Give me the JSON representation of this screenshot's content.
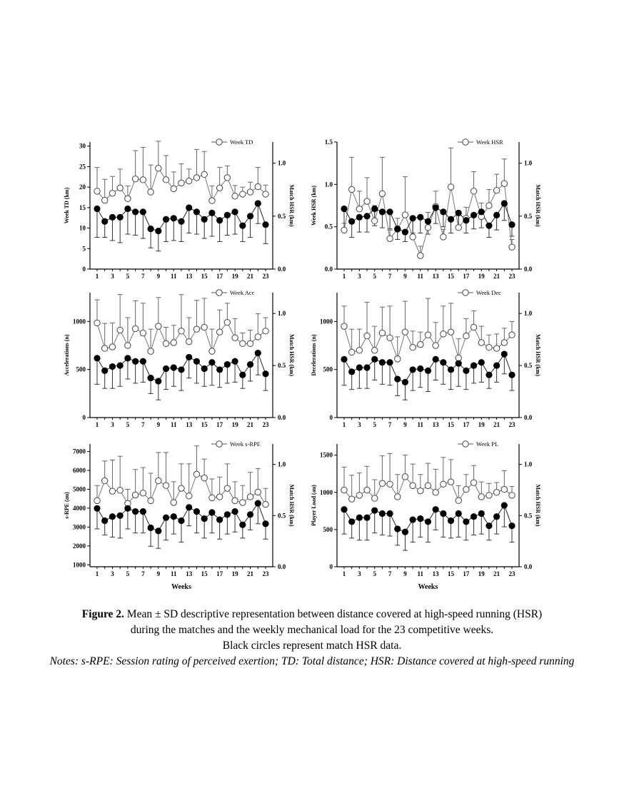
{
  "caption": {
    "label": "Figure 2.",
    "line1": "Mean ± SD descriptive representation between distance covered at high-speed running (HSR)",
    "line2": "during the matches and the weekly mechanical load for the 23 competitive weeks.",
    "line3": "Black circles represent match HSR data.",
    "notes": "Notes: s-RPE: Session rating of perceived exertion; TD: Total distance; HSR: Distance covered at high-speed running"
  },
  "chart_data": [
    {
      "type": "line",
      "ylabel": "Week TD (km)",
      "y2label": "Match HSR (km)",
      "xlabel": "",
      "ylim": [
        0,
        31
      ],
      "yticks": [
        0,
        5,
        10,
        15,
        20,
        25,
        30
      ],
      "y2lim": [
        0,
        1.2
      ],
      "y2ticks": [
        "0.0",
        "0.5",
        "1.0"
      ],
      "xticks": [
        1,
        3,
        5,
        7,
        9,
        11,
        13,
        15,
        17,
        19,
        21,
        23
      ],
      "legend": "Week TD",
      "week": [
        19.0,
        16.8,
        18.5,
        19.8,
        17.2,
        22.0,
        21.8,
        18.8,
        24.6,
        21.8,
        19.6,
        21.0,
        21.5,
        22.3,
        23.1,
        16.7,
        19.8,
        22.3,
        17.8,
        18.3,
        18.8,
        20.1,
        18.3
      ],
      "week_err": [
        5.8,
        5.1,
        4.1,
        4.6,
        3.1,
        6.9,
        7.9,
        6.6,
        6.6,
        5.9,
        4.1,
        4.7,
        2.9,
        6.9,
        5.6,
        3.6,
        5.0,
        2.9,
        2.6,
        1.7,
        2.4,
        4.7,
        2.2
      ],
      "match": [
        0.57,
        0.45,
        0.49,
        0.49,
        0.57,
        0.54,
        0.54,
        0.38,
        0.36,
        0.47,
        0.48,
        0.45,
        0.58,
        0.54,
        0.47,
        0.53,
        0.46,
        0.51,
        0.54,
        0.41,
        0.5,
        0.62,
        0.42
      ],
      "match_err": [
        0.27,
        0.15,
        0.22,
        0.24,
        0.24,
        0.22,
        0.25,
        0.18,
        0.19,
        0.21,
        0.21,
        0.19,
        0.24,
        0.21,
        0.18,
        0.22,
        0.2,
        0.19,
        0.21,
        0.15,
        0.2,
        0.19,
        0.18
      ]
    },
    {
      "type": "line",
      "ylabel": "Week HSR (km)",
      "y2label": "Match HSR (km)",
      "xlabel": "",
      "ylim": [
        0,
        1.5
      ],
      "yticks": [
        "0.0",
        "0.5",
        "1.0",
        "1.5"
      ],
      "y2lim": [
        0,
        1.2
      ],
      "y2ticks": [
        "0.0",
        "0.5",
        "1.0"
      ],
      "xticks": [
        1,
        3,
        5,
        7,
        9,
        11,
        13,
        15,
        17,
        19,
        21,
        23
      ],
      "legend": "Week HSR",
      "week": [
        0.46,
        0.94,
        0.71,
        0.8,
        0.57,
        0.89,
        0.36,
        0.47,
        0.64,
        0.38,
        0.16,
        0.49,
        0.74,
        0.38,
        0.97,
        0.49,
        0.6,
        0.92,
        0.62,
        0.75,
        0.93,
        1.01,
        0.26
      ],
      "week_err": [
        0.08,
        0.38,
        0.21,
        0.28,
        0.18,
        0.43,
        0.1,
        0.13,
        0.45,
        0.23,
        0.11,
        0.18,
        0.18,
        0.09,
        0.46,
        0.16,
        0.13,
        0.23,
        0.16,
        0.19,
        0.19,
        0.29,
        0.09
      ],
      "match": [
        0.57,
        0.45,
        0.49,
        0.5,
        0.57,
        0.54,
        0.54,
        0.38,
        0.35,
        0.48,
        0.49,
        0.45,
        0.58,
        0.54,
        0.47,
        0.53,
        0.46,
        0.51,
        0.54,
        0.41,
        0.51,
        0.62,
        0.42
      ],
      "match_err": [
        0.2,
        0.15,
        0.14,
        0.15,
        0.16,
        0.15,
        0.16,
        0.1,
        0.09,
        0.14,
        0.15,
        0.12,
        0.15,
        0.14,
        0.13,
        0.15,
        0.12,
        0.13,
        0.15,
        0.11,
        0.14,
        0.16,
        0.11
      ]
    },
    {
      "type": "line",
      "ylabel": "Accelerations (n)",
      "y2label": "Match HSR (km)",
      "xlabel": "",
      "ylim": [
        0,
        1300
      ],
      "yticks": [
        0,
        500,
        1000
      ],
      "y2lim": [
        0,
        1.2
      ],
      "y2ticks": [
        "0.0",
        "0.5",
        "1.0"
      ],
      "xticks": [
        1,
        3,
        5,
        7,
        9,
        11,
        13,
        15,
        17,
        19,
        21,
        23
      ],
      "legend": "Week Acc",
      "week": [
        985,
        720,
        735,
        910,
        750,
        925,
        880,
        690,
        950,
        770,
        780,
        900,
        790,
        920,
        940,
        690,
        890,
        990,
        830,
        770,
        770,
        840,
        900
      ],
      "week_err": [
        240,
        260,
        250,
        370,
        290,
        290,
        310,
        230,
        300,
        170,
        180,
        380,
        250,
        300,
        300,
        230,
        230,
        200,
        200,
        110,
        140,
        240,
        140
      ],
      "match": [
        0.57,
        0.45,
        0.49,
        0.5,
        0.57,
        0.54,
        0.54,
        0.38,
        0.35,
        0.47,
        0.48,
        0.46,
        0.58,
        0.54,
        0.47,
        0.53,
        0.46,
        0.51,
        0.54,
        0.41,
        0.51,
        0.62,
        0.42
      ],
      "match_err": [
        0.25,
        0.17,
        0.21,
        0.2,
        0.2,
        0.21,
        0.2,
        0.15,
        0.18,
        0.2,
        0.18,
        0.2,
        0.2,
        0.21,
        0.17,
        0.22,
        0.17,
        0.18,
        0.2,
        0.13,
        0.16,
        0.21,
        0.16
      ]
    },
    {
      "type": "line",
      "ylabel": "Decelerations (n)",
      "y2label": "Match HSR (km)",
      "xlabel": "",
      "ylim": [
        0,
        1300
      ],
      "yticks": [
        0,
        500,
        1000
      ],
      "y2lim": [
        0,
        1.2
      ],
      "y2ticks": [
        "0.0",
        "0.5",
        "1.0"
      ],
      "xticks": [
        1,
        3,
        5,
        7,
        9,
        11,
        13,
        15,
        17,
        19,
        21,
        23
      ],
      "legend": "Week Dec",
      "week": [
        950,
        680,
        700,
        850,
        700,
        880,
        830,
        610,
        890,
        730,
        760,
        860,
        750,
        870,
        890,
        620,
        850,
        940,
        780,
        730,
        720,
        780,
        860
      ],
      "week_err": [
        210,
        240,
        220,
        350,
        250,
        270,
        330,
        230,
        320,
        170,
        130,
        380,
        240,
        290,
        300,
        200,
        180,
        170,
        170,
        130,
        150,
        150,
        140
      ],
      "match": [
        0.56,
        0.44,
        0.48,
        0.48,
        0.56,
        0.53,
        0.53,
        0.37,
        0.34,
        0.46,
        0.47,
        0.45,
        0.56,
        0.53,
        0.46,
        0.52,
        0.45,
        0.5,
        0.53,
        0.41,
        0.5,
        0.61,
        0.41
      ],
      "match_err": [
        0.25,
        0.17,
        0.2,
        0.2,
        0.2,
        0.21,
        0.22,
        0.16,
        0.17,
        0.2,
        0.18,
        0.2,
        0.2,
        0.21,
        0.19,
        0.22,
        0.18,
        0.17,
        0.19,
        0.13,
        0.16,
        0.19,
        0.15
      ]
    },
    {
      "type": "line",
      "ylabel": "s-RPE (au)",
      "y2label": "Match HSR (km)",
      "xlabel": "Weeks",
      "ylim": [
        900,
        7400
      ],
      "yticks": [
        1000,
        2000,
        3000,
        4000,
        5000,
        6000,
        7000
      ],
      "y2lim": [
        0,
        1.2
      ],
      "y2ticks": [
        "0.0",
        "0.5",
        "1.0"
      ],
      "xticks": [
        1,
        3,
        5,
        7,
        9,
        11,
        13,
        15,
        17,
        19,
        21,
        23
      ],
      "legend": "Week s-RPE",
      "week": [
        4400,
        5450,
        4900,
        4950,
        4250,
        4700,
        4800,
        4400,
        5450,
        5200,
        4300,
        5050,
        4650,
        5800,
        5600,
        4550,
        4600,
        5050,
        4400,
        4300,
        4600,
        4850,
        4200
      ],
      "week_err": [
        800,
        1050,
        1650,
        1800,
        750,
        1350,
        1350,
        1450,
        1500,
        1750,
        1100,
        1300,
        1700,
        1500,
        1000,
        1000,
        1050,
        1300,
        1000,
        900,
        1300,
        1250,
        850
      ],
      "match": [
        0.57,
        0.45,
        0.49,
        0.5,
        0.57,
        0.54,
        0.54,
        0.38,
        0.35,
        0.48,
        0.49,
        0.45,
        0.58,
        0.54,
        0.47,
        0.53,
        0.46,
        0.51,
        0.54,
        0.41,
        0.51,
        0.62,
        0.42
      ],
      "match_err": [
        0.2,
        0.14,
        0.2,
        0.22,
        0.2,
        0.21,
        0.21,
        0.18,
        0.17,
        0.22,
        0.17,
        0.21,
        0.18,
        0.21,
        0.19,
        0.2,
        0.19,
        0.19,
        0.2,
        0.13,
        0.15,
        0.2,
        0.15
      ]
    },
    {
      "type": "line",
      "ylabel": "Player Load (au)",
      "y2label": "Match HSR (km)",
      "xlabel": "Weeks",
      "ylim": [
        0,
        1650
      ],
      "yticks": [
        0,
        500,
        1000,
        1500
      ],
      "y2lim": [
        0,
        1.2
      ],
      "y2ticks": [
        "0.0",
        "0.5",
        "1.0"
      ],
      "xticks": [
        1,
        3,
        5,
        7,
        9,
        11,
        13,
        15,
        17,
        19,
        21,
        23
      ],
      "legend": "Week PL",
      "week": [
        1030,
        910,
        960,
        1030,
        920,
        1120,
        1110,
        940,
        1210,
        1090,
        1020,
        1090,
        1000,
        1110,
        1140,
        890,
        1040,
        1130,
        940,
        960,
        1000,
        1040,
        960
      ],
      "week_err": [
        310,
        320,
        300,
        320,
        250,
        370,
        410,
        300,
        290,
        290,
        220,
        300,
        310,
        360,
        300,
        200,
        200,
        230,
        200,
        160,
        130,
        250,
        120
      ],
      "match": [
        0.56,
        0.44,
        0.48,
        0.48,
        0.55,
        0.52,
        0.52,
        0.37,
        0.34,
        0.46,
        0.47,
        0.44,
        0.56,
        0.52,
        0.45,
        0.52,
        0.44,
        0.49,
        0.52,
        0.4,
        0.49,
        0.6,
        0.4
      ],
      "match_err": [
        0.24,
        0.16,
        0.22,
        0.22,
        0.22,
        0.21,
        0.22,
        0.16,
        0.18,
        0.22,
        0.18,
        0.2,
        0.2,
        0.23,
        0.17,
        0.23,
        0.18,
        0.18,
        0.2,
        0.14,
        0.17,
        0.21,
        0.16
      ]
    }
  ]
}
